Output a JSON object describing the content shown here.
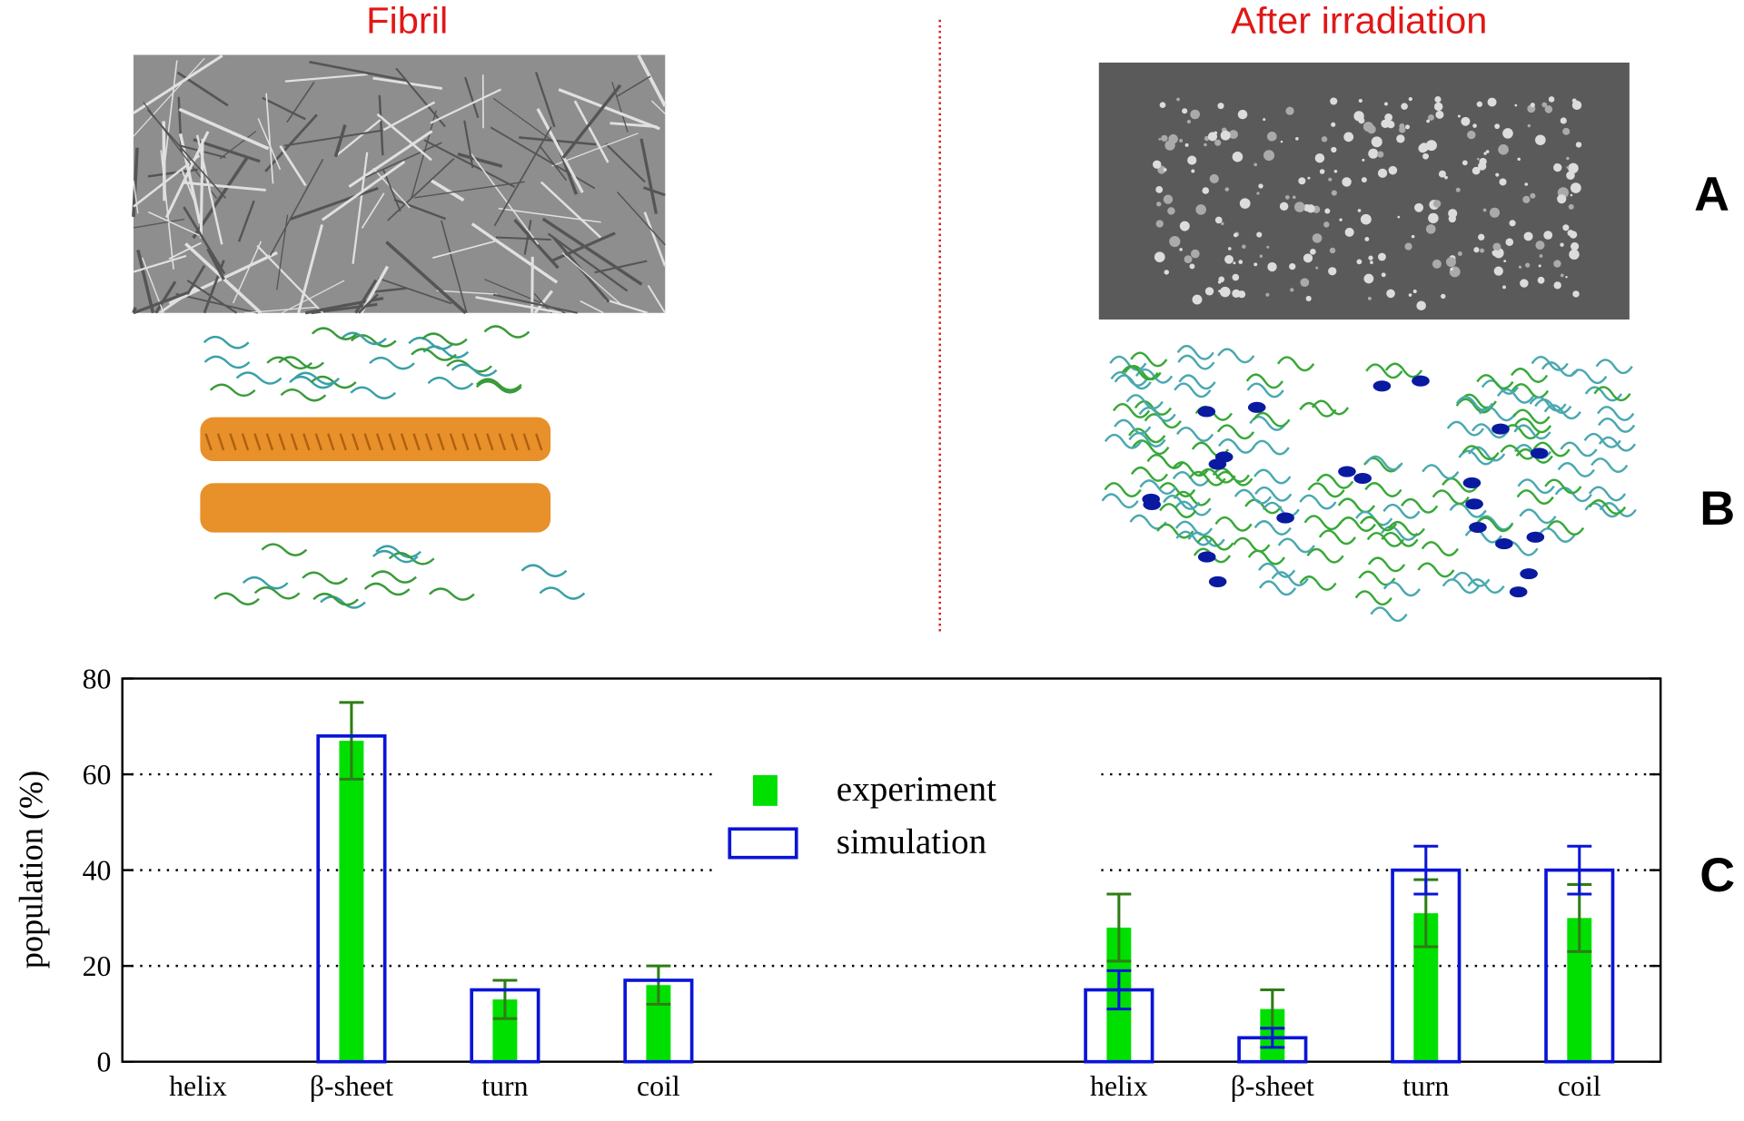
{
  "panels": {
    "left_title": "Fibril",
    "right_title": "After irradiation",
    "labels": [
      "A",
      "B",
      "C"
    ]
  },
  "chart_data": {
    "type": "bar",
    "y_label": "population (%)",
    "categories": [
      "helix",
      "β-sheet",
      "turn",
      "coil",
      null,
      null,
      "helix",
      "β-sheet",
      "turn",
      "coil"
    ],
    "series": [
      {
        "name": "experiment",
        "color": "#00e000",
        "style": "filled",
        "values": [
          0,
          67,
          13,
          16,
          null,
          null,
          28,
          11,
          31,
          30
        ],
        "errors": [
          null,
          8,
          4,
          4,
          null,
          null,
          7,
          4,
          7,
          7
        ],
        "error_color": "#2e7d16"
      },
      {
        "name": "simulation",
        "color": "#0a14d8",
        "style": "outline",
        "values": [
          0,
          68,
          15,
          17,
          null,
          null,
          15,
          5,
          40,
          40
        ],
        "errors": [
          null,
          null,
          null,
          null,
          null,
          null,
          4,
          2,
          5,
          5
        ],
        "error_color": "#0a14d8"
      }
    ],
    "ylim": [
      0,
      80
    ],
    "yticks": [
      0,
      20,
      40,
      60,
      80
    ],
    "grid": true
  }
}
